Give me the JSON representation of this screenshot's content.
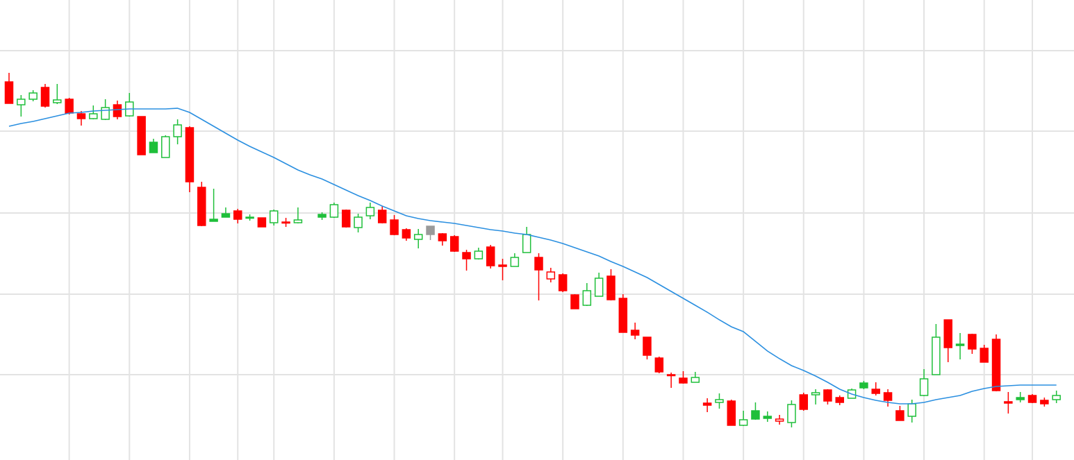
{
  "chart_data": {
    "type": "candlestick",
    "categories": [
      null,
      null,
      null,
      null,
      null,
      null,
      null,
      null,
      null,
      null,
      null,
      null,
      null,
      null,
      null,
      null,
      null,
      null,
      null,
      null,
      null,
      null,
      null,
      null,
      null,
      null,
      null,
      null,
      null,
      null,
      null,
      null,
      null,
      null,
      null,
      null,
      null,
      null,
      null,
      null,
      null,
      null,
      null,
      null,
      null,
      null,
      null,
      null,
      null,
      null,
      null,
      null,
      null,
      null,
      null,
      null,
      null,
      null,
      null,
      null,
      null,
      null,
      null,
      null,
      null,
      null,
      null,
      null,
      null,
      null,
      null,
      null,
      null,
      null,
      null,
      null,
      null,
      null,
      null,
      null,
      null,
      null,
      null,
      null,
      null,
      null,
      null,
      null
    ],
    "open": [
      54.5,
      51.2,
      52.0,
      53.7,
      51.5,
      52.0,
      49.9,
      49.2,
      49.1,
      51.2,
      49.6,
      49.5,
      45.8,
      43.6,
      46.6,
      47.9,
      39.3,
      34.7,
      35.5,
      35.9,
      34.9,
      34.9,
      34.2,
      34.3,
      34.2,
      null,
      35.4,
      35.0,
      36.0,
      33.5,
      35.2,
      36.0,
      34.6,
      33.2,
      31.8,
      33.7,
      32.6,
      32.2,
      29.9,
      29.0,
      30.7,
      28.1,
      27.9,
      29.9,
      29.2,
      26.1,
      26.7,
      23.8,
      22.3,
      23.6,
      26.5,
      23.3,
      18.7,
      17.7,
      14.7,
      12.3,
      11.8,
      11.2,
      8.2,
      8.3,
      8.5,
      5.0,
      7.1,
      6.3,
      5.6,
      5.4,
      9.4,
      9.4,
      10.1,
      9.0,
      8.9,
      11.1,
      10.2,
      9.7,
      7.1,
      6.3,
      9.3,
      12.3,
      20.2,
      16.7,
      18.1,
      16.1,
      17.4,
      8.4,
      9.0,
      9.3,
      8.6,
      8.7
    ],
    "high": [
      55.8,
      52.6,
      53.3,
      54.2,
      54.2,
      52.2,
      50.3,
      51.1,
      52.0,
      51.8,
      52.9,
      49.5,
      46.3,
      46.8,
      49.1,
      48.1,
      40.1,
      39.1,
      36.4,
      36.2,
      35.4,
      34.9,
      36.1,
      34.9,
      36.4,
      null,
      35.7,
      37.1,
      36.1,
      35.5,
      37.1,
      36.6,
      35.3,
      33.4,
      33.3,
      33.7,
      32.7,
      32.4,
      30.3,
      30.6,
      31.0,
      29.0,
      29.8,
      33.6,
      29.8,
      27.7,
      26.9,
      23.9,
      25.5,
      27.0,
      27.5,
      23.9,
      19.8,
      17.7,
      14.9,
      12.6,
      12.8,
      12.7,
      8.9,
      9.6,
      8.7,
      7.1,
      8.3,
      7.0,
      6.5,
      8.6,
      9.7,
      10.2,
      10.2,
      9.3,
      10.3,
      11.4,
      11.2,
      10.2,
      7.8,
      8.7,
      13.1,
      19.6,
      20.2,
      18.3,
      18.2,
      16.6,
      18.1,
      9.8,
      9.8,
      9.5,
      9.0,
      10.0
    ],
    "low": [
      51.4,
      49.5,
      51.7,
      50.8,
      51.3,
      49.8,
      48.2,
      49.1,
      49.0,
      49.1,
      49.5,
      44.0,
      44.3,
      43.6,
      45.5,
      38.6,
      33.7,
      34.4,
      35.0,
      34.1,
      34.5,
      33.6,
      33.8,
      33.6,
      34.1,
      null,
      34.6,
      34.9,
      33.5,
      32.8,
      34.7,
      34.1,
      32.4,
      31.6,
      30.5,
      31.7,
      30.9,
      30.0,
      27.3,
      28.9,
      27.6,
      25.9,
      27.9,
      29.9,
      23.0,
      25.6,
      24.2,
      21.8,
      22.2,
      23.6,
      23.0,
      18.4,
      17.4,
      14.5,
      12.5,
      10.4,
      11.0,
      11.2,
      6.9,
      7.4,
      5.0,
      4.9,
      5.8,
      5.5,
      5.1,
      4.7,
      7.1,
      8.0,
      8.0,
      7.9,
      8.9,
      10.2,
      9.3,
      7.7,
      5.7,
      5.4,
      9.2,
      12.3,
      14.1,
      14.5,
      15.3,
      14.1,
      9.9,
      6.7,
      8.3,
      8.2,
      7.7,
      8.2
    ],
    "close": [
      51.4,
      52.0,
      52.9,
      51.0,
      51.9,
      50.0,
      49.2,
      49.9,
      50.8,
      49.5,
      51.6,
      44.0,
      44.3,
      46.6,
      48.3,
      40.1,
      33.8,
      34.4,
      35.0,
      34.7,
      35.0,
      33.6,
      35.9,
      34.2,
      34.6,
      null,
      35.0,
      36.8,
      33.6,
      35.0,
      36.4,
      34.2,
      32.5,
      32.0,
      32.5,
      32.5,
      31.6,
      30.1,
      29.0,
      30.1,
      28.0,
      27.9,
      29.2,
      32.5,
      27.4,
      27.1,
      24.4,
      21.8,
      24.4,
      26.2,
      23.1,
      18.4,
      18.0,
      15.1,
      12.7,
      12.2,
      11.1,
      11.9,
      7.9,
      8.7,
      5.0,
      5.8,
      5.9,
      6.0,
      5.9,
      8.0,
      7.3,
      9.7,
      8.5,
      8.3,
      10.1,
      10.4,
      9.6,
      8.6,
      5.7,
      8.1,
      11.7,
      17.7,
      16.2,
      16.5,
      16.0,
      14.1,
      10.0,
      8.2,
      8.7,
      8.3,
      8.1,
      9.3
    ],
    "ma": [
      48.1,
      48.5,
      48.8,
      49.2,
      49.6,
      50.0,
      50.1,
      50.3,
      50.4,
      50.5,
      50.6,
      50.6,
      50.6,
      50.6,
      50.7,
      50.1,
      49.1,
      48.1,
      47.1,
      46.1,
      45.2,
      44.4,
      43.6,
      42.7,
      41.8,
      41.1,
      40.5,
      39.7,
      38.9,
      38.1,
      37.4,
      36.6,
      35.9,
      35.2,
      34.8,
      34.5,
      34.3,
      34.1,
      33.8,
      33.5,
      33.2,
      33.0,
      32.7,
      32.5,
      32.1,
      31.7,
      31.2,
      30.6,
      30.0,
      29.4,
      28.6,
      27.9,
      27.1,
      26.3,
      25.3,
      24.3,
      23.3,
      22.3,
      21.3,
      20.2,
      19.2,
      18.5,
      17.1,
      15.7,
      14.6,
      13.6,
      12.9,
      12.1,
      11.2,
      10.2,
      9.5,
      9.0,
      8.6,
      8.3,
      8.1,
      8.1,
      8.3,
      8.7,
      9.0,
      9.3,
      9.9,
      10.3,
      10.6,
      10.7,
      10.8,
      10.8,
      10.8,
      10.8
    ],
    "up_color": "#1fbf3a",
    "down_color": "#ff0000",
    "flat_color": "#9a9a9a",
    "ma_color": "#2a8fe0",
    "xlim": [
      -0.75,
      88.46
    ],
    "xticks": [
      5,
      10,
      15,
      19,
      22,
      27,
      32,
      37,
      41,
      46,
      51,
      56,
      61,
      66,
      71,
      76,
      81,
      85
    ],
    "ylim": [
      0,
      66.3
    ],
    "yticks": [
      59.0,
      47.4,
      35.6,
      23.9,
      12.3
    ],
    "grid": true
  }
}
